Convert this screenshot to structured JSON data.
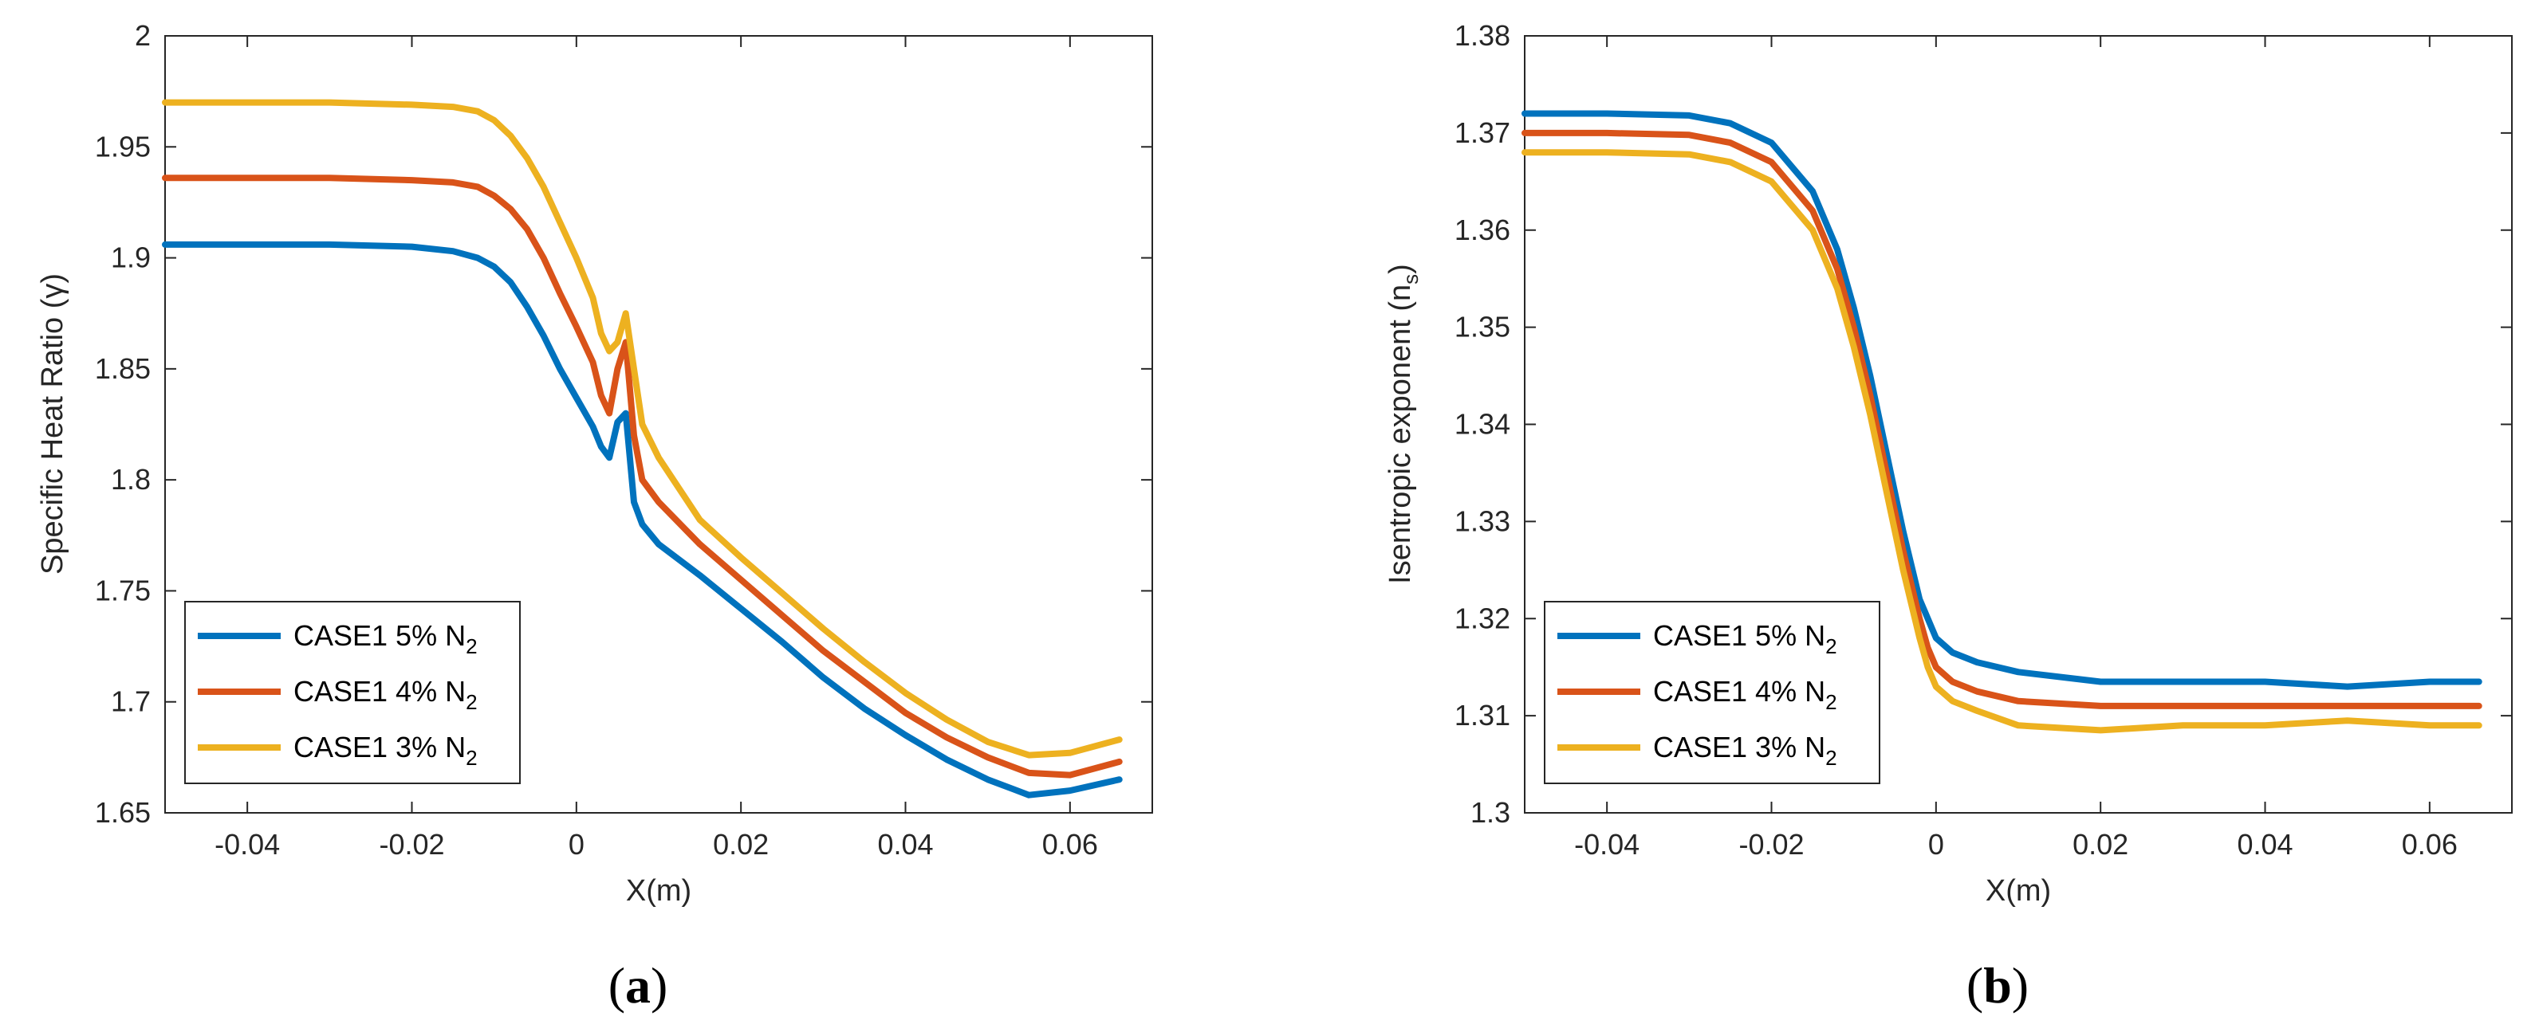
{
  "colors": {
    "blue": "#0072BD",
    "orange": "#D95319",
    "yellow": "#EDB120",
    "axis": "#262626",
    "grid": "#d9d9d9"
  },
  "chart_data": [
    {
      "type": "line",
      "caption": "(a)",
      "caption_letter": "a",
      "xlabel": "X(m)",
      "ylabel": "Specific Heat Ratio (γ)",
      "xlim": [
        -0.05,
        0.07
      ],
      "ylim": [
        1.65,
        2.0
      ],
      "xticks": [
        -0.04,
        -0.02,
        0,
        0.02,
        0.04,
        0.06
      ],
      "xtick_labels": [
        "-0.04",
        "-0.02",
        "0",
        "0.02",
        "0.04",
        "0.06"
      ],
      "yticks": [
        1.65,
        1.7,
        1.75,
        1.8,
        1.85,
        1.9,
        1.95,
        2.0
      ],
      "ytick_labels": [
        "1.65",
        "1.7",
        "1.75",
        "1.8",
        "1.85",
        "1.9",
        "1.95",
        "2"
      ],
      "legend_position": "bottom-left",
      "series": [
        {
          "name": "CASE1 5% N2",
          "label_main": "CASE1 5% N",
          "label_sub": "2",
          "color": "blue",
          "x": [
            -0.05,
            -0.04,
            -0.03,
            -0.02,
            -0.015,
            -0.012,
            -0.01,
            -0.008,
            -0.006,
            -0.004,
            -0.002,
            0.0,
            0.002,
            0.003,
            0.004,
            0.005,
            0.006,
            0.007,
            0.008,
            0.01,
            0.015,
            0.02,
            0.025,
            0.03,
            0.035,
            0.04,
            0.045,
            0.05,
            0.055,
            0.06,
            0.066
          ],
          "y": [
            1.906,
            1.906,
            1.906,
            1.905,
            1.903,
            1.9,
            1.896,
            1.889,
            1.878,
            1.865,
            1.85,
            1.837,
            1.824,
            1.815,
            1.81,
            1.826,
            1.83,
            1.79,
            1.78,
            1.771,
            1.757,
            1.742,
            1.727,
            1.711,
            1.697,
            1.685,
            1.674,
            1.665,
            1.658,
            1.66,
            1.665
          ]
        },
        {
          "name": "CASE1 4% N2",
          "label_main": "CASE1 4% N",
          "label_sub": "2",
          "color": "orange",
          "x": [
            -0.05,
            -0.04,
            -0.03,
            -0.02,
            -0.015,
            -0.012,
            -0.01,
            -0.008,
            -0.006,
            -0.004,
            -0.002,
            0.0,
            0.002,
            0.003,
            0.004,
            0.005,
            0.006,
            0.007,
            0.008,
            0.01,
            0.015,
            0.02,
            0.025,
            0.03,
            0.035,
            0.04,
            0.045,
            0.05,
            0.055,
            0.06,
            0.066
          ],
          "y": [
            1.936,
            1.936,
            1.936,
            1.935,
            1.934,
            1.932,
            1.928,
            1.922,
            1.913,
            1.9,
            1.884,
            1.869,
            1.853,
            1.838,
            1.83,
            1.85,
            1.862,
            1.82,
            1.8,
            1.79,
            1.771,
            1.755,
            1.739,
            1.723,
            1.709,
            1.695,
            1.684,
            1.675,
            1.668,
            1.667,
            1.673
          ]
        },
        {
          "name": "CASE1 3% N2",
          "label_main": "CASE1 3% N",
          "label_sub": "2",
          "color": "yellow",
          "x": [
            -0.05,
            -0.04,
            -0.03,
            -0.02,
            -0.015,
            -0.012,
            -0.01,
            -0.008,
            -0.006,
            -0.004,
            -0.002,
            0.0,
            0.002,
            0.003,
            0.004,
            0.005,
            0.006,
            0.007,
            0.008,
            0.01,
            0.015,
            0.02,
            0.025,
            0.03,
            0.035,
            0.04,
            0.045,
            0.05,
            0.055,
            0.06,
            0.066
          ],
          "y": [
            1.97,
            1.97,
            1.97,
            1.969,
            1.968,
            1.966,
            1.962,
            1.955,
            1.945,
            1.932,
            1.916,
            1.9,
            1.882,
            1.866,
            1.858,
            1.862,
            1.875,
            1.85,
            1.825,
            1.81,
            1.782,
            1.765,
            1.749,
            1.733,
            1.718,
            1.704,
            1.692,
            1.682,
            1.676,
            1.677,
            1.683
          ]
        }
      ]
    },
    {
      "type": "line",
      "caption": "(b)",
      "caption_letter": "b",
      "xlabel": "X(m)",
      "ylabel": "Isentropic exponent (n_s)",
      "ylabel_main": "Isentropic exponent (n",
      "ylabel_sub": "s",
      "ylabel_close": ")",
      "xlim": [
        -0.05,
        0.07
      ],
      "ylim": [
        1.3,
        1.38
      ],
      "xticks": [
        -0.04,
        -0.02,
        0,
        0.02,
        0.04,
        0.06
      ],
      "xtick_labels": [
        "-0.04",
        "-0.02",
        "0",
        "0.02",
        "0.04",
        "0.06"
      ],
      "yticks": [
        1.3,
        1.31,
        1.32,
        1.33,
        1.34,
        1.35,
        1.36,
        1.37,
        1.38
      ],
      "ytick_labels": [
        "1.3",
        "1.31",
        "1.32",
        "1.33",
        "1.34",
        "1.35",
        "1.36",
        "1.37",
        "1.38"
      ],
      "legend_position": "bottom-left",
      "series": [
        {
          "name": "CASE1 5% N2",
          "label_main": "CASE1 5% N",
          "label_sub": "2",
          "color": "blue",
          "x": [
            -0.05,
            -0.04,
            -0.03,
            -0.025,
            -0.02,
            -0.015,
            -0.012,
            -0.01,
            -0.008,
            -0.006,
            -0.004,
            -0.002,
            -0.001,
            0.0,
            0.002,
            0.005,
            0.01,
            0.02,
            0.03,
            0.04,
            0.05,
            0.06,
            0.066
          ],
          "y": [
            1.372,
            1.372,
            1.3718,
            1.371,
            1.369,
            1.364,
            1.358,
            1.352,
            1.345,
            1.337,
            1.329,
            1.322,
            1.32,
            1.318,
            1.3165,
            1.3155,
            1.3145,
            1.3135,
            1.3135,
            1.3135,
            1.313,
            1.3135,
            1.3135
          ]
        },
        {
          "name": "CASE1 4% N2",
          "label_main": "CASE1 4% N",
          "label_sub": "2",
          "color": "orange",
          "x": [
            -0.05,
            -0.04,
            -0.03,
            -0.025,
            -0.02,
            -0.015,
            -0.012,
            -0.01,
            -0.008,
            -0.006,
            -0.004,
            -0.002,
            -0.001,
            0.0,
            0.002,
            0.005,
            0.01,
            0.02,
            0.03,
            0.04,
            0.05,
            0.06,
            0.066
          ],
          "y": [
            1.37,
            1.37,
            1.3698,
            1.369,
            1.367,
            1.362,
            1.356,
            1.35,
            1.343,
            1.335,
            1.327,
            1.32,
            1.317,
            1.315,
            1.3135,
            1.3125,
            1.3115,
            1.311,
            1.311,
            1.311,
            1.311,
            1.311,
            1.311
          ]
        },
        {
          "name": "CASE1 3% N2",
          "label_main": "CASE1 3% N",
          "label_sub": "2",
          "color": "yellow",
          "x": [
            -0.05,
            -0.04,
            -0.03,
            -0.025,
            -0.02,
            -0.015,
            -0.012,
            -0.01,
            -0.008,
            -0.006,
            -0.004,
            -0.002,
            -0.001,
            0.0,
            0.002,
            0.005,
            0.01,
            0.02,
            0.03,
            0.04,
            0.05,
            0.06,
            0.066
          ],
          "y": [
            1.368,
            1.368,
            1.3678,
            1.367,
            1.365,
            1.36,
            1.354,
            1.348,
            1.341,
            1.333,
            1.325,
            1.318,
            1.315,
            1.313,
            1.3115,
            1.3105,
            1.309,
            1.3085,
            1.309,
            1.309,
            1.3095,
            1.309,
            1.309
          ]
        }
      ]
    }
  ]
}
